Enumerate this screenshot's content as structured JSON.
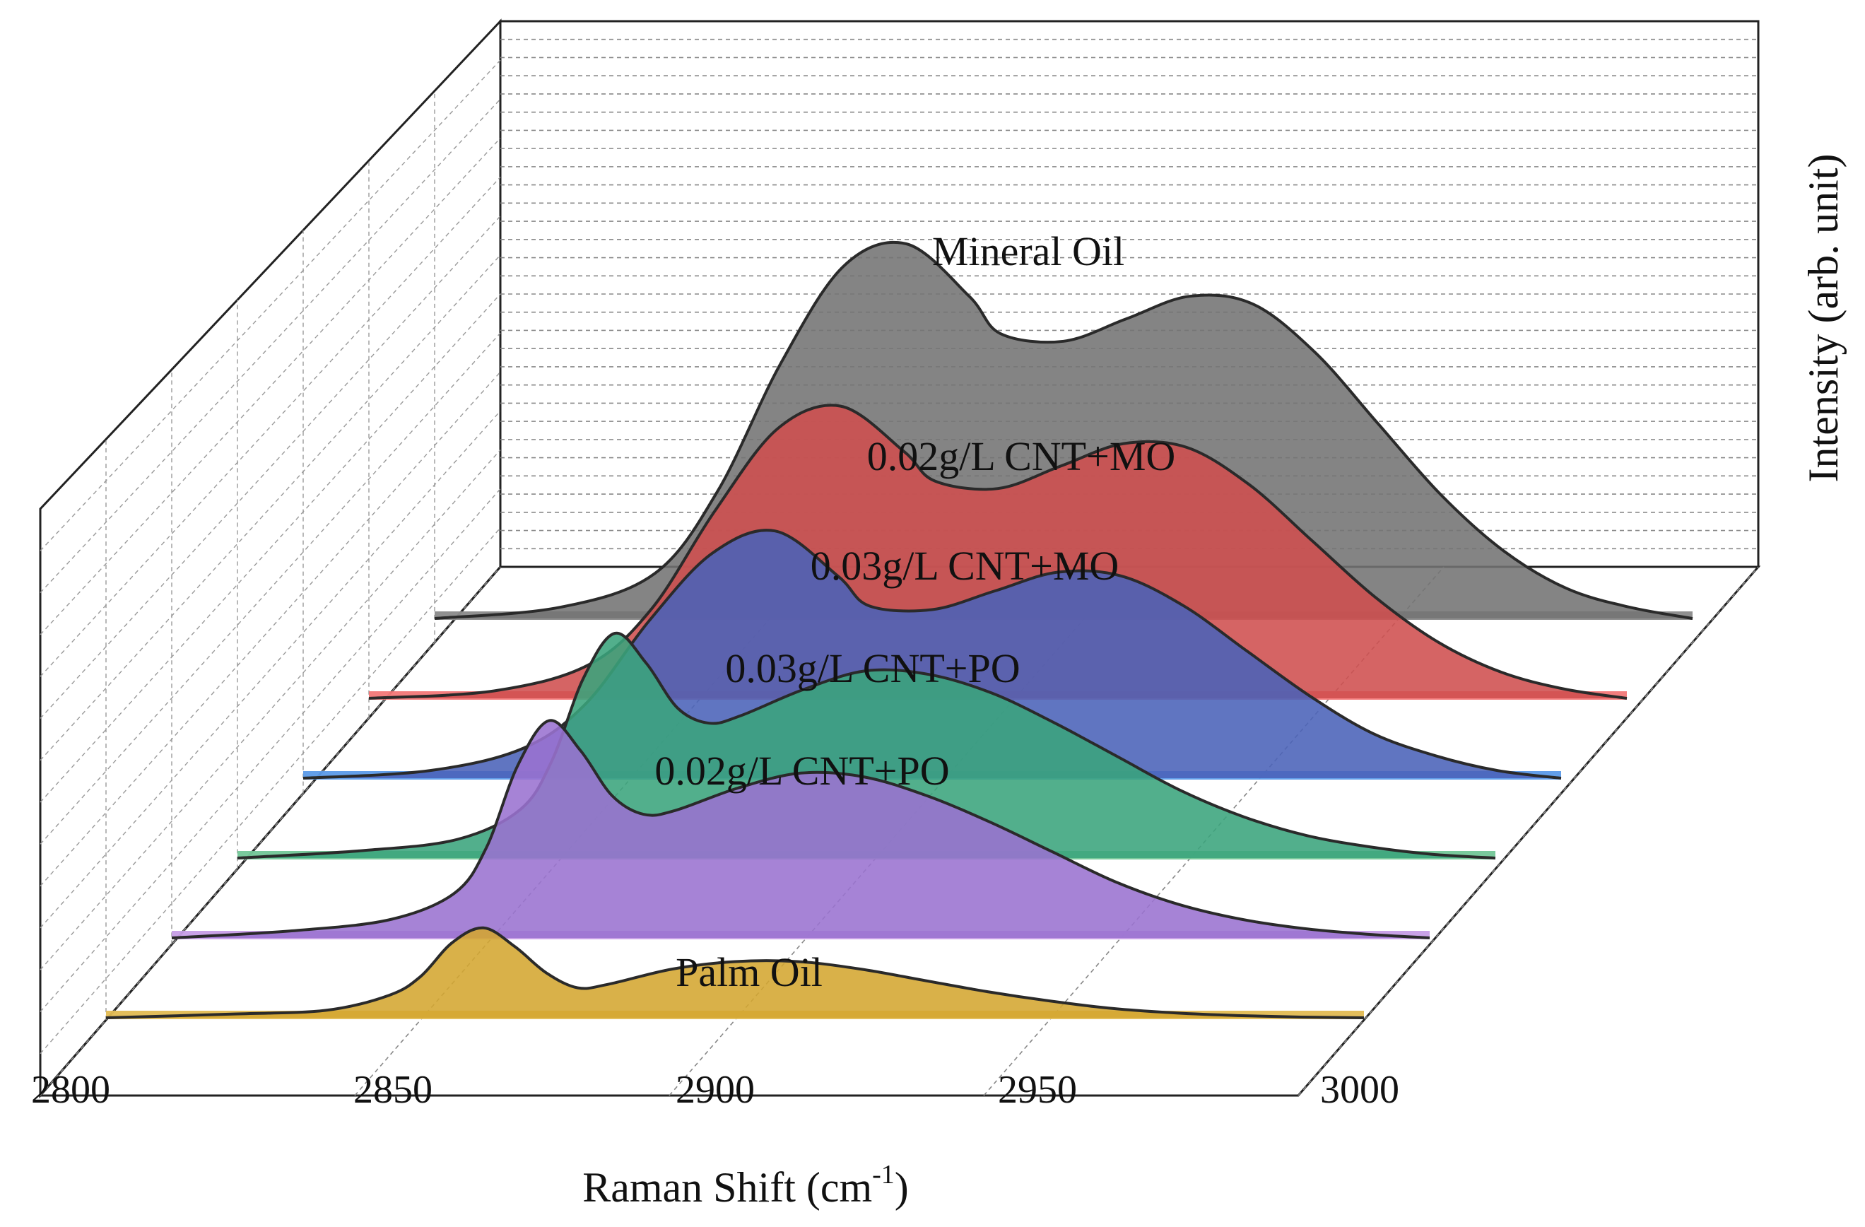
{
  "chart_data": {
    "type": "area",
    "style": "3d-waterfall",
    "title": "",
    "xlabel": "Raman Shift (cm",
    "xlabel_sup": "-1",
    "xlabel_tail": ")",
    "ylabel": "Intensity (arb. unit)",
    "xlim": [
      2800,
      3000
    ],
    "x_ticks": [
      "2800",
      "2850",
      "2900",
      "2950",
      "3000"
    ],
    "legend": "none (labels placed on curves)",
    "grid": true,
    "series": [
      {
        "name": "Palm Oil",
        "label": "Palm Oil",
        "color_fill": "#d4a630",
        "color_fill_light": "#e2bb52",
        "x": [
          2800,
          2820,
          2835,
          2845,
          2850,
          2855,
          2860,
          2865,
          2870,
          2875,
          2880,
          2890,
          2900,
          2910,
          2920,
          2930,
          2940,
          2950,
          2960,
          2970,
          2980,
          2990,
          3000
        ],
        "y": [
          0,
          1,
          2,
          6,
          11,
          20,
          24,
          19,
          12,
          8,
          9,
          13,
          15,
          15,
          13,
          10,
          7,
          4.5,
          2.5,
          1.3,
          0.6,
          0.2,
          0
        ]
      },
      {
        "name": "0.02g/L CNT+PO",
        "label": "0.02g/L CNT+PO",
        "color_fill": "#9a72d0",
        "color_fill_light": "#c69de6",
        "x": [
          2800,
          2820,
          2835,
          2845,
          2850,
          2855,
          2860,
          2865,
          2870,
          2875,
          2880,
          2890,
          2900,
          2910,
          2920,
          2930,
          2940,
          2950,
          2960,
          2970,
          2980,
          2990,
          3000
        ],
        "y": [
          0,
          2,
          5,
          12,
          24,
          46,
          58,
          50,
          38,
          33,
          34,
          40,
          44,
          43,
          38,
          31,
          23,
          15,
          9,
          5,
          2.5,
          1,
          0
        ]
      },
      {
        "name": "0.03g/L CNT+PO",
        "label": "0.03g/L CNT+PO",
        "color_fill": "#3aa47c",
        "color_fill_light": "#72c697",
        "x": [
          2800,
          2820,
          2835,
          2845,
          2850,
          2855,
          2860,
          2865,
          2870,
          2875,
          2880,
          2890,
          2900,
          2910,
          2920,
          2930,
          2940,
          2950,
          2960,
          2970,
          2980,
          2990,
          3000
        ],
        "y": [
          0,
          2,
          5,
          13,
          26,
          48,
          60,
          52,
          40,
          36,
          38,
          45,
          50,
          49,
          44,
          36,
          27,
          18,
          11,
          6,
          3,
          1,
          0
        ]
      },
      {
        "name": "0.03g/L CNT+MO",
        "label": "0.03g/L CNT+MO",
        "color_fill": "#4a62b8",
        "color_fill_light": "#5b9ae8",
        "x": [
          2800,
          2820,
          2835,
          2845,
          2855,
          2865,
          2875,
          2885,
          2890,
          2900,
          2910,
          2920,
          2930,
          2940,
          2950,
          2960,
          2970,
          2980,
          2990,
          3000
        ],
        "y": [
          0,
          2,
          8,
          20,
          42,
          60,
          66,
          54,
          46,
          45,
          50,
          55,
          54,
          46,
          34,
          22,
          12,
          6,
          2,
          0
        ]
      },
      {
        "name": "0.02g/L CNT+MO",
        "label": "0.02g/L CNT+MO",
        "color_fill": "#cf4f4f",
        "color_fill_light": "#f27777",
        "x": [
          2800,
          2820,
          2835,
          2845,
          2855,
          2865,
          2875,
          2885,
          2890,
          2900,
          2910,
          2920,
          2930,
          2940,
          2950,
          2960,
          2970,
          2980,
          2990,
          3000
        ],
        "y": [
          0,
          2,
          9,
          24,
          50,
          72,
          78,
          66,
          58,
          56,
          62,
          68,
          67,
          57,
          42,
          27,
          15,
          7,
          2.5,
          0
        ]
      },
      {
        "name": "Mineral Oil",
        "label": "Mineral Oil",
        "color_fill": "#737373",
        "color_fill_light": "#8a8a8a",
        "x": [
          2800,
          2820,
          2835,
          2845,
          2855,
          2865,
          2875,
          2885,
          2890,
          2900,
          2910,
          2920,
          2930,
          2940,
          2950,
          2960,
          2970,
          2980,
          2990,
          3000
        ],
        "y": [
          0,
          3,
          12,
          34,
          68,
          94,
          100,
          86,
          76,
          74,
          80,
          86,
          84,
          71,
          52,
          33,
          18,
          8,
          3,
          0
        ]
      }
    ]
  }
}
